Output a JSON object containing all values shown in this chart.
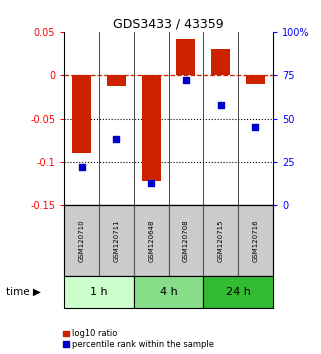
{
  "title": "GDS3433 / 43359",
  "samples": [
    "GSM120710",
    "GSM120711",
    "GSM120648",
    "GSM120708",
    "GSM120715",
    "GSM120716"
  ],
  "log10_ratio": [
    -0.09,
    -0.012,
    -0.122,
    0.042,
    0.03,
    -0.01
  ],
  "percentile_rank": [
    22,
    38,
    13,
    72,
    58,
    45
  ],
  "groups": [
    {
      "label": "1 h",
      "start": 0,
      "end": 2,
      "color": "#ccffcc"
    },
    {
      "label": "4 h",
      "start": 2,
      "end": 4,
      "color": "#88dd88"
    },
    {
      "label": "24 h",
      "start": 4,
      "end": 6,
      "color": "#33bb33"
    }
  ],
  "ylim_left": [
    -0.15,
    0.05
  ],
  "ylim_right": [
    0,
    100
  ],
  "bar_color": "#cc2200",
  "dot_color": "#0000cc",
  "dashed_line_color": "#cc2200",
  "dotted_lines": [
    -0.05,
    -0.1
  ],
  "left_ticks": [
    0.05,
    0,
    -0.05,
    -0.1,
    -0.15
  ],
  "left_tick_labels": [
    "0.05",
    "0",
    "-0.05",
    "-0.1",
    "-0.15"
  ],
  "right_ticks": [
    100,
    75,
    50,
    25,
    0
  ],
  "right_tick_labels": [
    "100%",
    "75",
    "50",
    "25",
    "0"
  ],
  "bar_width": 0.55,
  "sample_box_color": "#cccccc",
  "sample_box_edge": "#555555",
  "time_label": "time",
  "legend_red": "log10 ratio",
  "legend_blue": "percentile rank within the sample"
}
